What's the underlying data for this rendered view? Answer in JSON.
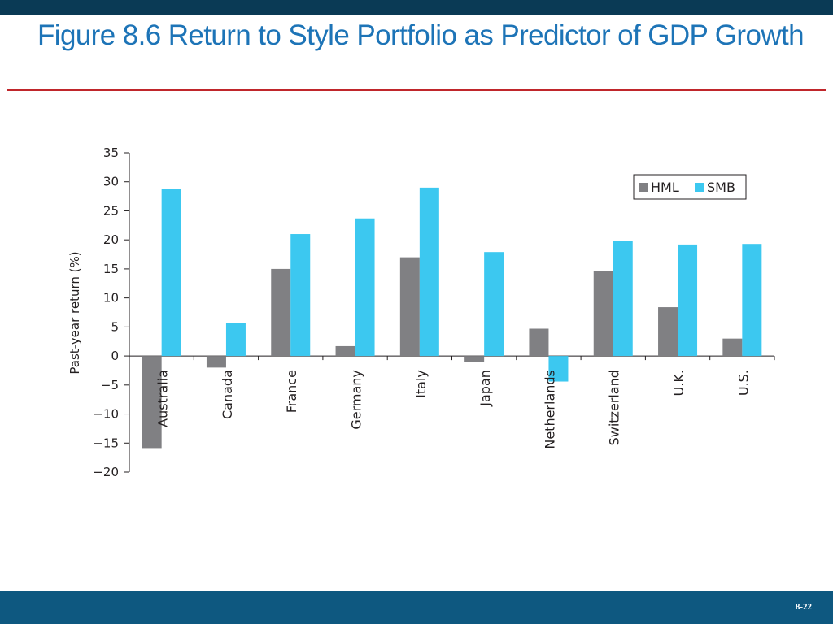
{
  "slide": {
    "title": "Figure 8.6 Return to Style Portfolio as Predictor of GDP Growth",
    "page_number": "8-22"
  },
  "colors": {
    "top_bar": "#0a3a55",
    "bottom_bar": "#0e5880",
    "title": "#1d74b7",
    "title_rule": "#c0262b",
    "hml": "#808083",
    "smb": "#3cc8f0"
  },
  "chart_data": {
    "type": "bar",
    "title": "",
    "xlabel": "",
    "ylabel": "Past-year return (%)",
    "ylim": [
      -20,
      35
    ],
    "yticks": [
      35,
      30,
      25,
      20,
      15,
      10,
      5,
      0,
      -5,
      -10,
      -15,
      -20
    ],
    "ytick_labels": [
      "35",
      "30",
      "25",
      "20",
      "15",
      "10",
      "5",
      "0",
      "−5",
      "−10",
      "−15",
      "−20"
    ],
    "grid": false,
    "legend": "top-right",
    "categories": [
      "Australia",
      "Canada",
      "France",
      "Germany",
      "Italy",
      "Japan",
      "Netherlands",
      "Switzerland",
      "U.K.",
      "U.S."
    ],
    "series": [
      {
        "name": "HML",
        "values": [
          -16.0,
          -2.0,
          15.0,
          1.7,
          17.0,
          -1.0,
          4.7,
          14.6,
          8.4,
          3.0
        ]
      },
      {
        "name": "SMB",
        "values": [
          28.8,
          5.7,
          21.0,
          23.7,
          29.0,
          17.9,
          -4.4,
          19.8,
          19.2,
          19.3
        ]
      }
    ]
  }
}
